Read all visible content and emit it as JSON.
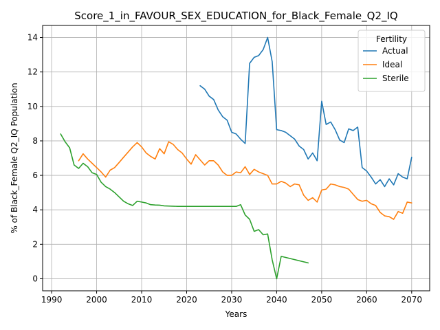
{
  "chart_data": {
    "type": "line",
    "title": "Score_1_in_FAVOUR_SEX_EDUCATION_for_Black_Female_Q2_IQ",
    "xlabel": "Years",
    "ylabel": "% of Black_Female Q2_IQ Population",
    "xlim": [
      1988,
      2074
    ],
    "ylim": [
      -0.7,
      14.7
    ],
    "xticks": [
      1990,
      2000,
      2010,
      2020,
      2030,
      2040,
      2050,
      2060,
      2070
    ],
    "yticks": [
      0,
      2,
      4,
      6,
      8,
      10,
      12,
      14
    ],
    "grid": true,
    "legend": {
      "title": "Fertility",
      "placement": "top-right"
    },
    "series": [
      {
        "name": "Actual",
        "color": "#1f77b4",
        "x": [
          2023,
          2024,
          2025,
          2026,
          2027,
          2028,
          2029,
          2030,
          2031,
          2032,
          2033,
          2034,
          2035,
          2036,
          2037,
          2038,
          2039,
          2040,
          2041,
          2042,
          2043,
          2044,
          2045,
          2046,
          2047,
          2048,
          2049,
          2050,
          2051,
          2052,
          2053,
          2054,
          2055,
          2056,
          2057,
          2058,
          2059,
          2060,
          2061,
          2062,
          2063,
          2064,
          2065,
          2066,
          2067,
          2068,
          2069,
          2070
        ],
        "y": [
          11.2,
          11.0,
          10.6,
          10.4,
          9.8,
          9.4,
          9.2,
          8.5,
          8.4,
          8.1,
          7.85,
          12.5,
          12.85,
          12.95,
          13.3,
          14.0,
          12.6,
          8.65,
          8.6,
          8.5,
          8.3,
          8.1,
          7.7,
          7.5,
          6.95,
          7.3,
          6.85,
          10.3,
          8.95,
          9.1,
          8.65,
          8.05,
          7.9,
          8.7,
          8.6,
          8.8,
          6.45,
          6.25,
          5.9,
          5.5,
          5.75,
          5.35,
          5.8,
          5.45,
          6.1,
          5.9,
          5.8,
          7.05
        ]
      },
      {
        "name": "Ideal",
        "color": "#ff7f0e",
        "x": [
          1996,
          1997,
          1998,
          1999,
          2000,
          2001,
          2002,
          2003,
          2004,
          2005,
          2006,
          2007,
          2008,
          2009,
          2010,
          2011,
          2012,
          2013,
          2014,
          2015,
          2016,
          2017,
          2018,
          2019,
          2020,
          2021,
          2022,
          2023,
          2024,
          2025,
          2026,
          2027,
          2028,
          2029,
          2030,
          2031,
          2032,
          2033,
          2034,
          2035,
          2036,
          2037,
          2038,
          2039,
          2040,
          2041,
          2042,
          2043,
          2044,
          2045,
          2046,
          2047,
          2048,
          2049,
          2050,
          2051,
          2052,
          2053,
          2054,
          2055,
          2056,
          2057,
          2058,
          2059,
          2060,
          2061,
          2062,
          2063,
          2064,
          2065,
          2066,
          2067,
          2068,
          2069,
          2070
        ],
        "y": [
          6.85,
          7.25,
          6.95,
          6.7,
          6.45,
          6.2,
          5.9,
          6.3,
          6.45,
          6.75,
          7.05,
          7.35,
          7.65,
          7.9,
          7.65,
          7.3,
          7.1,
          6.95,
          7.55,
          7.25,
          7.95,
          7.8,
          7.5,
          7.3,
          6.95,
          6.65,
          7.2,
          6.9,
          6.6,
          6.85,
          6.85,
          6.6,
          6.2,
          6.0,
          6.0,
          6.2,
          6.15,
          6.5,
          6.05,
          6.35,
          6.2,
          6.1,
          6.0,
          5.5,
          5.5,
          5.65,
          5.55,
          5.35,
          5.5,
          5.45,
          4.85,
          4.55,
          4.7,
          4.45,
          5.15,
          5.2,
          5.5,
          5.45,
          5.35,
          5.3,
          5.2,
          4.9,
          4.6,
          4.5,
          4.55,
          4.35,
          4.25,
          3.85,
          3.65,
          3.6,
          3.45,
          3.9,
          3.8,
          4.45,
          4.4
        ]
      },
      {
        "name": "Sterile",
        "color": "#2ca02c",
        "x": [
          1992,
          1993,
          1994,
          1995,
          1996,
          1997,
          1998,
          1999,
          2000,
          2001,
          2002,
          2003,
          2004,
          2005,
          2006,
          2007,
          2008,
          2009,
          2010,
          2011,
          2012,
          2013,
          2014,
          2015,
          2016,
          2017,
          2018,
          2019,
          2020,
          2021,
          2022,
          2023,
          2024,
          2025,
          2026,
          2027,
          2028,
          2029,
          2030,
          2031,
          2032,
          2033,
          2034,
          2035,
          2036,
          2037,
          2038,
          2039,
          2040,
          2041,
          2047
        ],
        "y": [
          8.4,
          7.95,
          7.6,
          6.6,
          6.4,
          6.7,
          6.5,
          6.15,
          6.05,
          5.6,
          5.35,
          5.2,
          5.0,
          4.75,
          4.5,
          4.35,
          4.25,
          4.5,
          4.45,
          4.4,
          4.3,
          4.28,
          4.27,
          4.23,
          4.22,
          4.21,
          4.2,
          4.2,
          4.2,
          4.2,
          4.2,
          4.2,
          4.2,
          4.2,
          4.2,
          4.2,
          4.2,
          4.2,
          4.2,
          4.2,
          4.3,
          3.7,
          3.45,
          2.75,
          2.85,
          2.55,
          2.6,
          1.1,
          0.0,
          1.3,
          0.92
        ]
      }
    ]
  }
}
